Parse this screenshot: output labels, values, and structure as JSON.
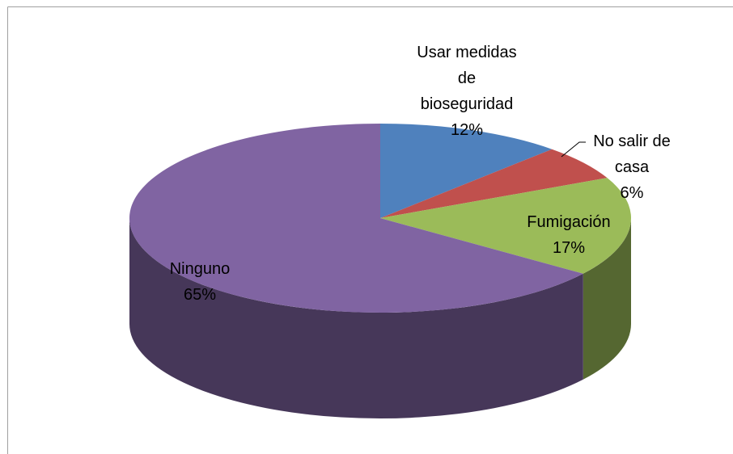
{
  "chart_data": {
    "type": "pie3d",
    "categories": [
      "Usar medidas de bioseguridad",
      "No salir de casa",
      "Fumigación",
      "Ninguno"
    ],
    "values": [
      12,
      6,
      17,
      65
    ],
    "value_labels": [
      "12%",
      "6%",
      "17%",
      "65%"
    ],
    "colors": [
      "#4f81bd",
      "#c0504d",
      "#9bbb59",
      "#8064a2"
    ]
  }
}
